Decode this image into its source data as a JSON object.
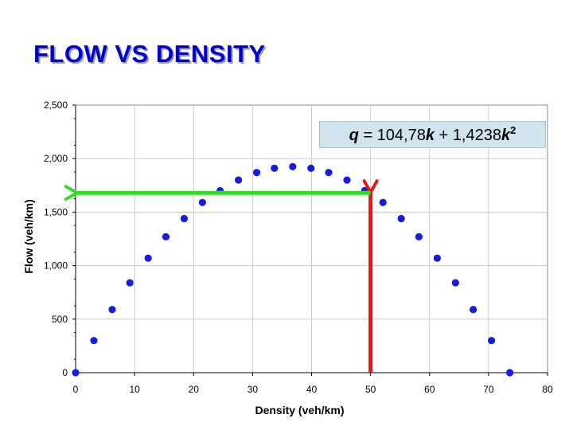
{
  "title": "FLOW VS DENSITY",
  "equation": {
    "lhs": "q",
    "equals": " = 104,78",
    "k1": "k",
    "plus": " + 1,4238",
    "k2": "k",
    "exponent": "2"
  },
  "colors": {
    "title": "#0000cc",
    "points": "#1a1ae6",
    "horizontal_arrow": "#33dd22",
    "vertical_arrow": "#ee1111",
    "equation_bg": "#cfe4ec"
  },
  "chart_data": {
    "type": "scatter",
    "xlabel": "Density (veh/km)",
    "ylabel": "Flow (veh/km)",
    "xlim": [
      0,
      80
    ],
    "ylim": [
      0,
      2500
    ],
    "x_ticks": [
      "0",
      "10",
      "20",
      "30",
      "40",
      "50",
      "60",
      "70",
      "80"
    ],
    "y_ticks": [
      "0",
      "500",
      "1,000",
      "1,500",
      "2,000",
      "2,500"
    ],
    "grid": true,
    "series": [
      {
        "points": [
          [
            0,
            0
          ],
          [
            3.1,
            300
          ],
          [
            6.2,
            590
          ],
          [
            9.2,
            840
          ],
          [
            12.3,
            1070
          ],
          [
            15.3,
            1270
          ],
          [
            18.4,
            1440
          ],
          [
            21.5,
            1590
          ],
          [
            24.5,
            1700
          ],
          [
            27.6,
            1800
          ],
          [
            30.7,
            1870
          ],
          [
            33.7,
            1910
          ],
          [
            36.8,
            1925
          ],
          [
            39.9,
            1910
          ],
          [
            42.9,
            1870
          ],
          [
            46.0,
            1800
          ],
          [
            49.0,
            1700
          ],
          [
            52.1,
            1590
          ],
          [
            55.2,
            1440
          ],
          [
            58.2,
            1270
          ],
          [
            61.3,
            1070
          ],
          [
            64.4,
            840
          ],
          [
            67.4,
            590
          ],
          [
            70.5,
            300
          ],
          [
            73.6,
            0
          ]
        ]
      }
    ],
    "annotations": {
      "vertical_arrow": {
        "x": 50,
        "y_from": 0,
        "y_to": 1700
      },
      "horizontal_arrow": {
        "y": 1680,
        "x_from": 50,
        "x_to": 0
      }
    }
  }
}
